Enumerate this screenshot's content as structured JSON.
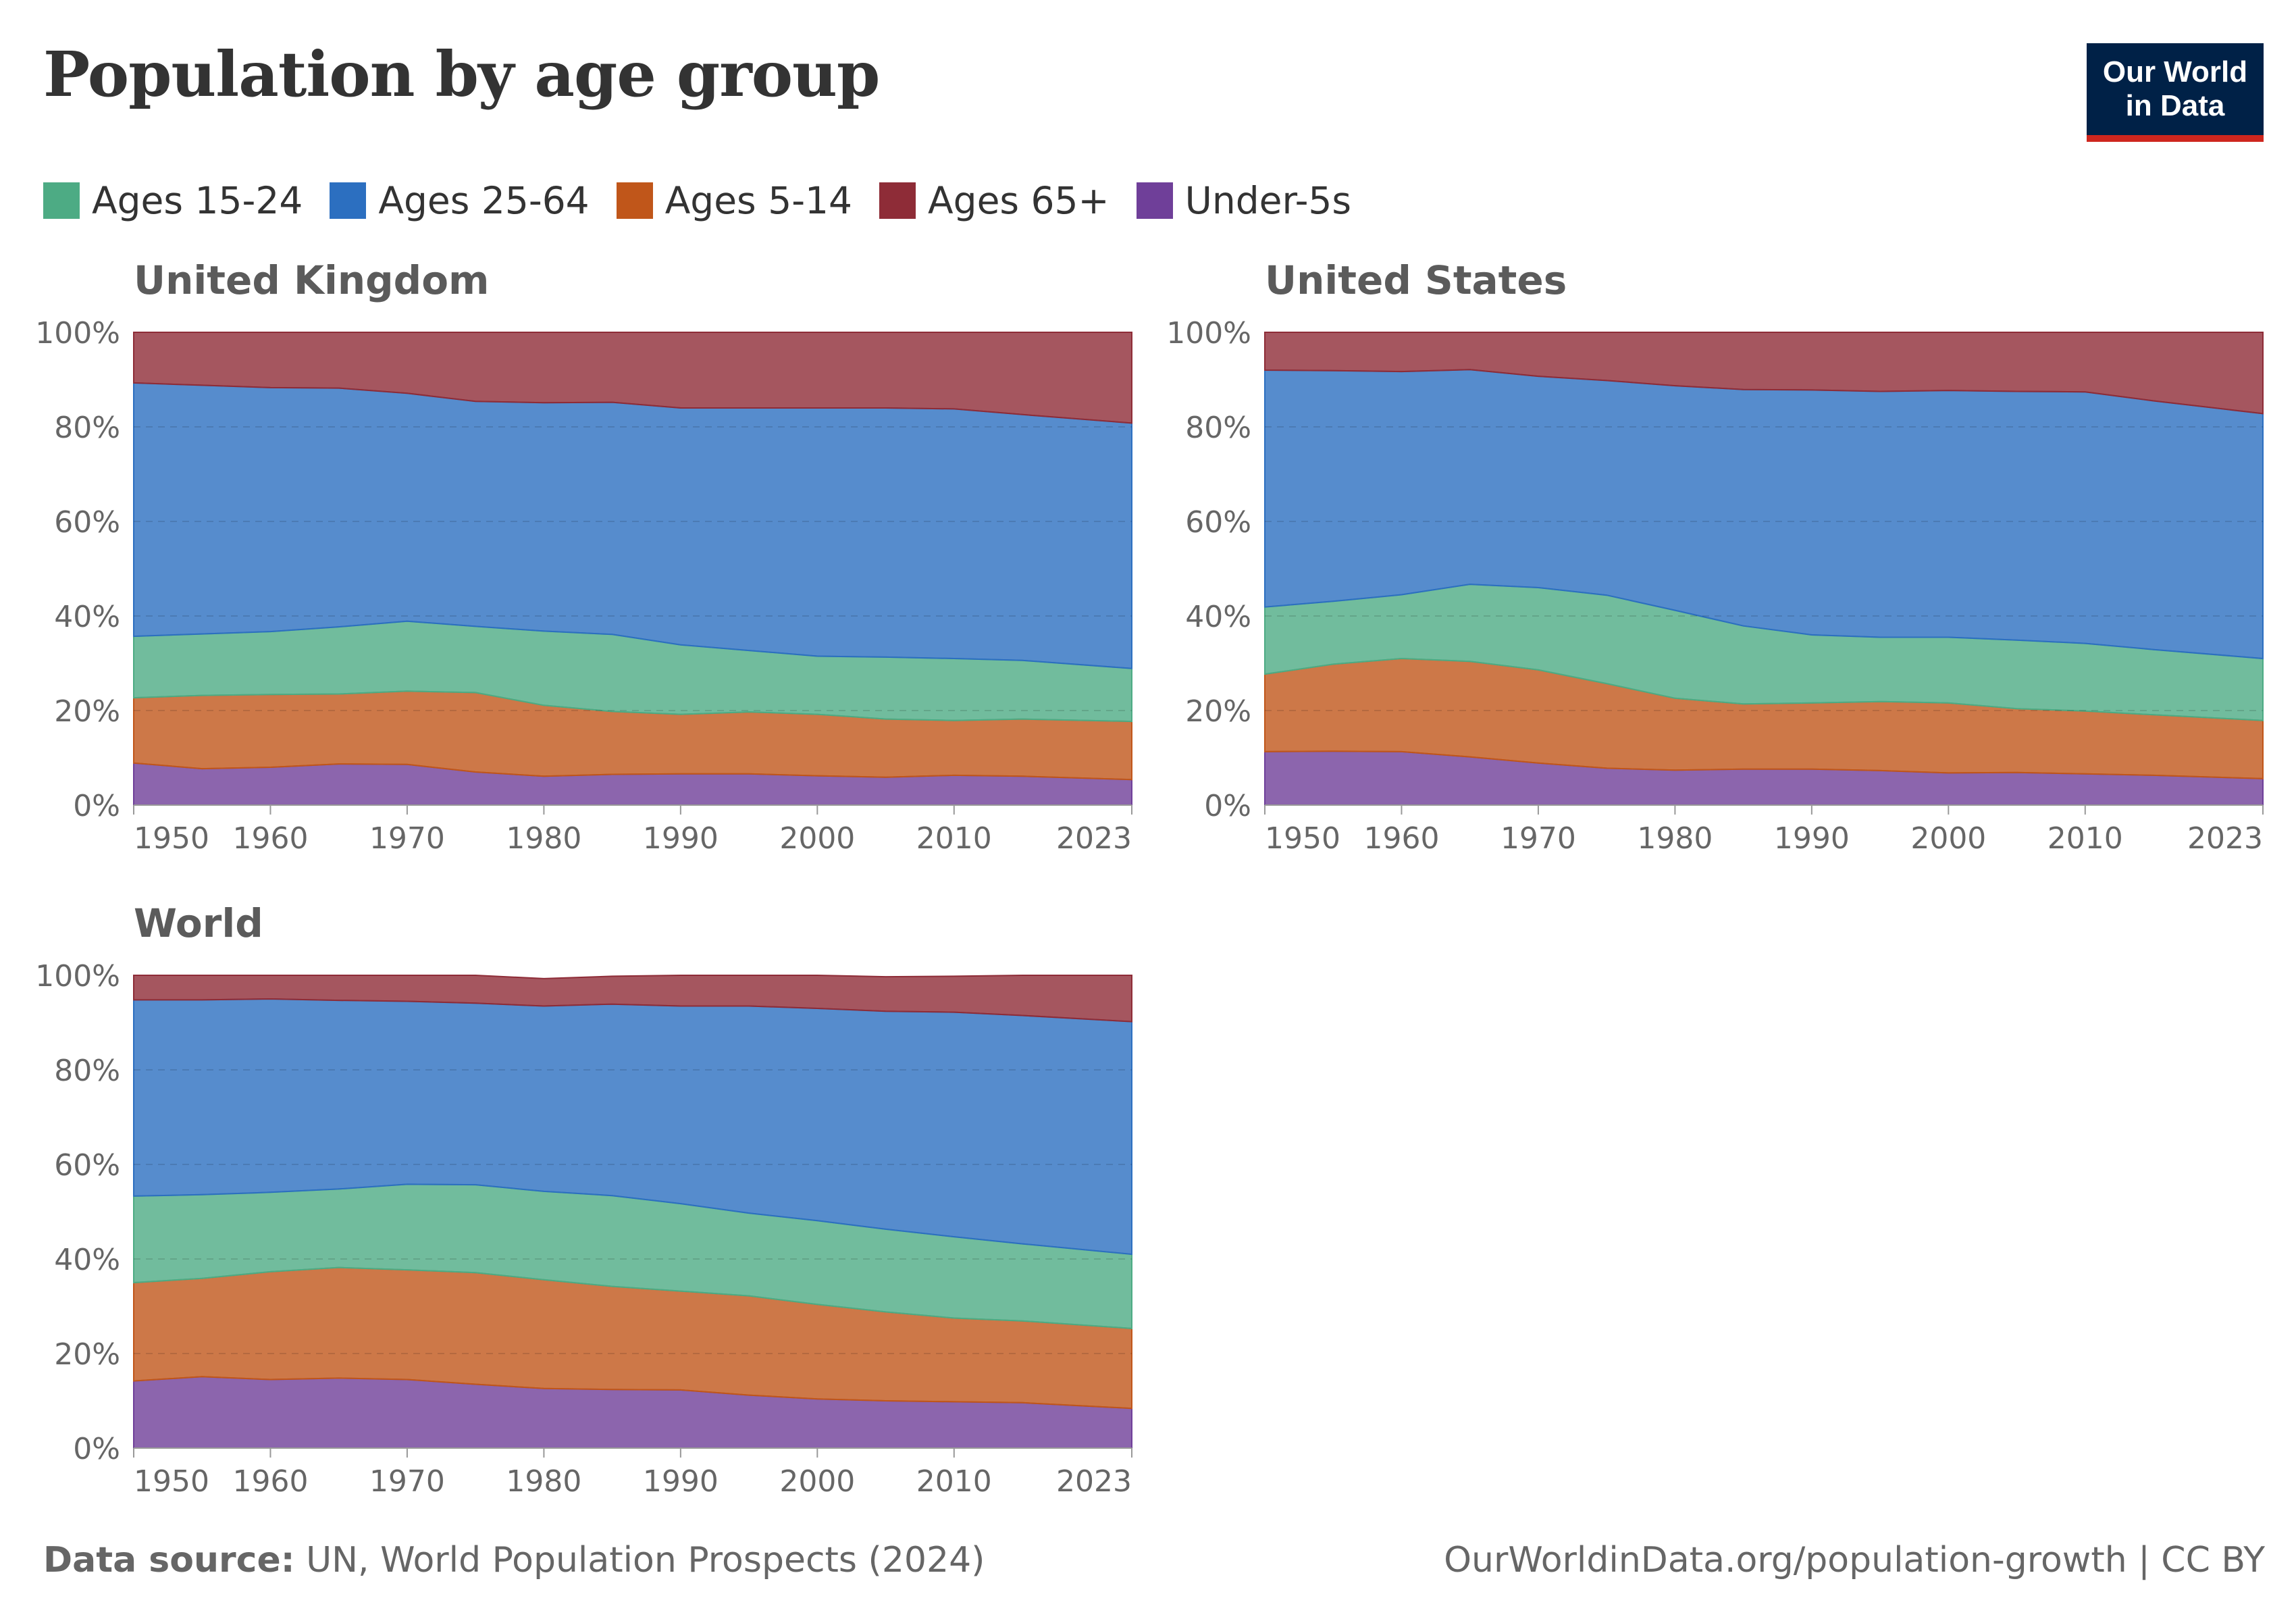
{
  "title": "Population by age group",
  "logo": {
    "line1": "Our World",
    "line2": "in Data"
  },
  "legend": [
    {
      "label": "Ages 15-24",
      "color": "#4dab84"
    },
    {
      "label": "Ages 25-64",
      "color": "#2c6fc0"
    },
    {
      "label": "Ages 5-14",
      "color": "#c0561a"
    },
    {
      "label": "Ages 65+",
      "color": "#8e2c37"
    },
    {
      "label": "Under-5s",
      "color": "#6f3f99"
    }
  ],
  "footer": {
    "source_label": "Data source:",
    "source_text": "UN, World Population Prospects (2024)",
    "right": "OurWorldinData.org/population-growth | CC BY"
  },
  "chart_data": [
    {
      "type": "area",
      "stacked": "percent",
      "title": "United Kingdom",
      "x": [
        1950,
        1955,
        1960,
        1965,
        1970,
        1975,
        1980,
        1985,
        1990,
        1995,
        2000,
        2005,
        2010,
        2015,
        2023
      ],
      "x_ticks": [
        1950,
        1960,
        1970,
        1980,
        1990,
        2000,
        2010,
        2023
      ],
      "y_ticks": [
        "0%",
        "20%",
        "40%",
        "60%",
        "80%",
        "100%"
      ],
      "ylim": [
        0,
        100
      ],
      "series": [
        {
          "name": "Under-5s",
          "color": "#6f3f99",
          "values": [
            8.9,
            7.7,
            8.0,
            8.7,
            8.6,
            7.0,
            6.1,
            6.5,
            6.6,
            6.6,
            6.2,
            5.9,
            6.3,
            6.1,
            5.4
          ]
        },
        {
          "name": "Ages 5-14",
          "color": "#c0561a",
          "values": [
            13.8,
            15.5,
            15.4,
            14.8,
            15.5,
            16.8,
            15.0,
            13.3,
            12.6,
            13.1,
            13.0,
            12.3,
            11.6,
            12.1,
            12.3
          ]
        },
        {
          "name": "Ages 15-24",
          "color": "#4dab84",
          "values": [
            13.0,
            13.0,
            13.3,
            14.2,
            14.8,
            14.0,
            15.7,
            16.3,
            14.7,
            13.0,
            12.3,
            13.1,
            13.1,
            12.4,
            11.2
          ]
        },
        {
          "name": "Ages 25-64",
          "color": "#2c6fc0",
          "values": [
            53.6,
            52.6,
            51.6,
            50.5,
            48.2,
            47.6,
            48.3,
            49.1,
            50.1,
            51.3,
            52.5,
            52.7,
            52.8,
            52.0,
            51.9
          ]
        },
        {
          "name": "Ages 65+",
          "color": "#8e2c37",
          "values": [
            10.7,
            11.2,
            11.7,
            11.8,
            12.9,
            14.6,
            14.9,
            14.8,
            16.0,
            16.0,
            16.0,
            16.0,
            16.2,
            17.4,
            19.2
          ]
        }
      ]
    },
    {
      "type": "area",
      "stacked": "percent",
      "title": "United States",
      "x": [
        1950,
        1955,
        1960,
        1965,
        1970,
        1975,
        1980,
        1985,
        1990,
        1995,
        2000,
        2005,
        2010,
        2015,
        2023
      ],
      "x_ticks": [
        1950,
        1960,
        1970,
        1980,
        1990,
        2000,
        2010,
        2023
      ],
      "y_ticks": [
        "0%",
        "20%",
        "40%",
        "60%",
        "80%",
        "100%"
      ],
      "ylim": [
        0,
        100
      ],
      "series": [
        {
          "name": "Under-5s",
          "color": "#6f3f99",
          "values": [
            11.3,
            11.4,
            11.3,
            10.2,
            8.9,
            7.8,
            7.4,
            7.6,
            7.6,
            7.3,
            6.8,
            6.9,
            6.6,
            6.3,
            5.6
          ]
        },
        {
          "name": "Ages 5-14",
          "color": "#c0561a",
          "values": [
            16.4,
            18.4,
            19.7,
            20.2,
            19.7,
            17.9,
            15.2,
            13.8,
            14.0,
            14.6,
            14.8,
            13.5,
            13.3,
            12.8,
            12.3
          ]
        },
        {
          "name": "Ages 15-24",
          "color": "#4dab84",
          "values": [
            14.2,
            13.3,
            13.5,
            16.3,
            17.4,
            18.7,
            18.6,
            16.5,
            14.4,
            13.6,
            13.9,
            14.5,
            14.3,
            13.8,
            13.1
          ]
        },
        {
          "name": "Ages 25-64",
          "color": "#2c6fc0",
          "values": [
            50.1,
            48.8,
            47.2,
            45.4,
            44.7,
            45.4,
            47.5,
            50.0,
            51.8,
            52.0,
            52.2,
            52.6,
            53.2,
            52.6,
            51.8
          ]
        },
        {
          "name": "Ages 65+",
          "color": "#8e2c37",
          "values": [
            8.0,
            8.1,
            8.3,
            7.9,
            9.3,
            10.2,
            11.3,
            12.1,
            12.2,
            12.5,
            12.3,
            12.5,
            12.6,
            14.5,
            17.2
          ]
        }
      ]
    },
    {
      "type": "area",
      "stacked": "percent",
      "title": "World",
      "x": [
        1950,
        1955,
        1960,
        1965,
        1970,
        1975,
        1980,
        1985,
        1990,
        1995,
        2000,
        2005,
        2010,
        2015,
        2023
      ],
      "x_ticks": [
        1950,
        1960,
        1970,
        1980,
        1990,
        2000,
        2010,
        2023
      ],
      "y_ticks": [
        "0%",
        "20%",
        "40%",
        "60%",
        "80%",
        "100%"
      ],
      "ylim": [
        0,
        100
      ],
      "series": [
        {
          "name": "Under-5s",
          "color": "#6f3f99",
          "values": [
            14.2,
            15.1,
            14.5,
            14.8,
            14.5,
            13.5,
            12.6,
            12.4,
            12.3,
            11.2,
            10.4,
            10.0,
            9.8,
            9.6,
            8.4
          ]
        },
        {
          "name": "Ages 5-14",
          "color": "#c0561a",
          "values": [
            20.8,
            20.8,
            22.8,
            23.4,
            23.2,
            23.6,
            23.0,
            21.8,
            20.9,
            21.0,
            20.0,
            18.8,
            17.7,
            17.3,
            16.9
          ]
        },
        {
          "name": "Ages 15-24",
          "color": "#4dab84",
          "values": [
            18.3,
            17.7,
            16.8,
            16.6,
            18.1,
            18.6,
            18.7,
            19.2,
            18.5,
            17.5,
            17.7,
            17.5,
            17.2,
            16.3,
            15.7
          ]
        },
        {
          "name": "Ages 25-64",
          "color": "#2c6fc0",
          "values": [
            41.5,
            41.2,
            40.9,
            39.9,
            38.7,
            38.4,
            39.2,
            40.5,
            41.8,
            43.8,
            44.9,
            46.1,
            47.5,
            48.3,
            49.2
          ]
        },
        {
          "name": "Ages 65+",
          "color": "#8e2c37",
          "values": [
            5.2,
            5.2,
            5.0,
            5.3,
            5.5,
            5.9,
            5.8,
            5.9,
            6.5,
            6.5,
            7.0,
            7.3,
            7.6,
            8.5,
            9.8
          ]
        }
      ]
    }
  ]
}
